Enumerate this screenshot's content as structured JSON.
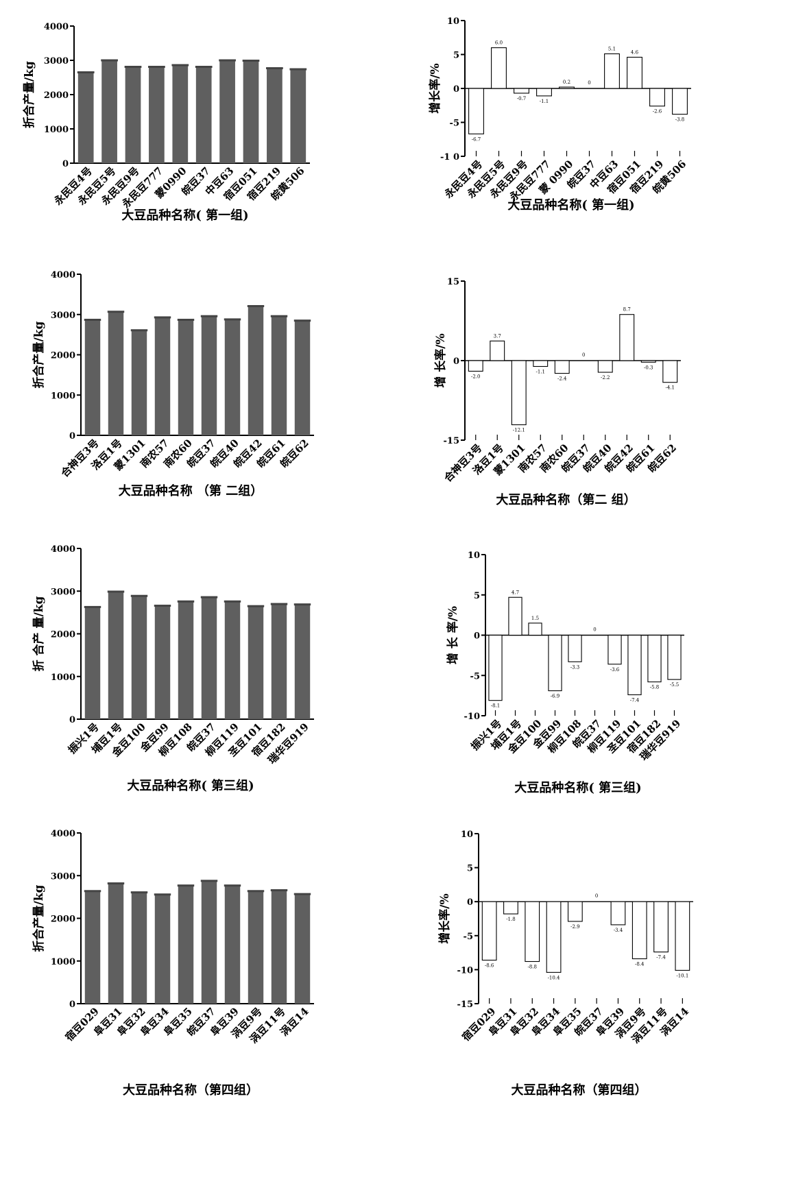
{
  "chart_data": [
    {
      "type": "bar",
      "group": "yield-group-1",
      "categories": [
        "永民豆4号",
        "永民豆5号",
        "永民豆9号",
        "永民豆777",
        "蒙0990",
        "皖豆37",
        "中豆63",
        "宿豆051",
        "宿豆219",
        "皖黄506"
      ],
      "values": [
        2640,
        2990,
        2800,
        2800,
        2850,
        2800,
        2990,
        2980,
        2760,
        2730
      ],
      "xlabel": "大豆品种名称( 第一组)",
      "ylabel": "折合产量/kg",
      "ylim": [
        0,
        4000
      ],
      "ticks": [
        0,
        1000,
        2000,
        3000,
        4000
      ],
      "tick_labels": [
        "0",
        "1000",
        "2000",
        "3000",
        "4000"
      ],
      "color": "#5f5f5f"
    },
    {
      "type": "bar",
      "group": "growth-group-1",
      "categories": [
        "永民豆4号",
        "永民豆5号",
        "永民豆9号",
        "永民豆777",
        "蒙 0990",
        "皖豆37",
        "中豆63",
        "宿豆051",
        "宿豆219",
        "皖黄506"
      ],
      "values": [
        -6.7,
        6.0,
        -0.7,
        -1.1,
        0.2,
        0,
        5.1,
        4.6,
        -2.6,
        -3.8
      ],
      "data_labels": [
        "-6.7",
        "6.0",
        "-0.7",
        "-1.1",
        "0.2",
        "0",
        "5.1",
        "4.6",
        "-2.6",
        "-3.8"
      ],
      "xlabel": "大豆品种名称( 第一组)",
      "ylabel": "增长率/%",
      "ylim": [
        -10,
        10
      ],
      "ticks": [
        -10,
        -5,
        0,
        5,
        10
      ],
      "tick_labels": [
        "-1 0",
        "-5",
        "0",
        "5",
        "10"
      ],
      "color": "#ffffff"
    },
    {
      "type": "bar",
      "group": "yield-group-2",
      "categories": [
        "合神豆3号",
        "洛豆1号",
        "蒙1301",
        "南农57",
        "南农60",
        "皖豆37",
        "皖豆40",
        "皖豆42",
        "皖豆61",
        "皖豆62"
      ],
      "values": [
        2860,
        3060,
        2600,
        2920,
        2860,
        2950,
        2870,
        3200,
        2950,
        2840
      ],
      "xlabel": "大豆品种名称 （第 二组）",
      "ylabel": "折合产量/kg",
      "ylim": [
        0,
        4000
      ],
      "ticks": [
        0,
        1000,
        2000,
        3000,
        4000
      ],
      "tick_labels": [
        "0",
        "1000",
        "2000",
        "3000",
        "4000"
      ],
      "color": "#5f5f5f"
    },
    {
      "type": "bar",
      "group": "growth-group-2",
      "categories": [
        "合神豆3号",
        "洛豆1号",
        "蒙1301",
        "南农57",
        "南农60",
        "皖豆37",
        "皖豆40",
        "皖豆42",
        "皖豆61",
        "皖豆62"
      ],
      "values": [
        -2.0,
        3.7,
        -12.1,
        -1.1,
        -2.4,
        0,
        -2.2,
        8.7,
        -0.3,
        -4.1
      ],
      "data_labels": [
        "-2.0",
        "3.7",
        "-12.1",
        "-1.1",
        "-2.4",
        "0",
        "-2.2",
        "8.7",
        "-0.3",
        "-4.1"
      ],
      "xlabel": "大豆品种名称（第二 组）",
      "ylabel": "增 长率/%",
      "ylim": [
        -15,
        15
      ],
      "ticks": [
        -15,
        0,
        15
      ],
      "tick_labels": [
        "-15",
        "0",
        "15"
      ],
      "color": "#ffffff"
    },
    {
      "type": "bar",
      "group": "yield-group-3",
      "categories": [
        "振兴1号",
        "埔豆1号",
        "金豆100",
        "金豆99",
        "柳豆108",
        "皖豆37",
        "柳豆119",
        "圣豆101",
        "宿豆182",
        "瑞华豆919"
      ],
      "values": [
        2620,
        2980,
        2880,
        2650,
        2750,
        2850,
        2750,
        2640,
        2690,
        2680
      ],
      "xlabel": "大豆品种名称( 第三组)",
      "ylabel": "折 合产 量/kg",
      "ylim": [
        0,
        4000
      ],
      "ticks": [
        0,
        1000,
        2000,
        3000,
        4000
      ],
      "tick_labels": [
        "0",
        "1000",
        "2000",
        "3000",
        "4000"
      ],
      "color": "#5f5f5f"
    },
    {
      "type": "bar",
      "group": "growth-group-3",
      "categories": [
        "振兴1号",
        "埔豆1号",
        "金豆100",
        "金豆99",
        "柳豆108",
        "皖豆37",
        "柳豆119",
        "圣豆101",
        "宿豆182",
        "瑞华豆919"
      ],
      "values": [
        -8.1,
        4.7,
        1.5,
        -6.9,
        -3.3,
        0,
        -3.6,
        -7.4,
        -5.8,
        -5.5
      ],
      "data_labels": [
        "-8.1",
        "4.7",
        "1.5",
        "-6.9",
        "-3.3",
        "0",
        "-3.6",
        "-7.4",
        "-5.8",
        "-5.5"
      ],
      "xlabel": "大豆品种名称( 第三组)",
      "ylabel": "增 长 率/%",
      "ylim": [
        -10,
        10
      ],
      "ticks": [
        -10,
        -5,
        0,
        5,
        10
      ],
      "tick_labels": [
        "-10",
        "-5",
        "0",
        "5",
        "10"
      ],
      "color": "#ffffff"
    },
    {
      "type": "bar",
      "group": "yield-group-4",
      "categories": [
        "宿豆029",
        "阜豆31",
        "阜豆32",
        "阜豆34",
        "阜豆35",
        "皖豆37",
        "阜豆39",
        "涡豆9号",
        "涡豆11号",
        "涡豆14"
      ],
      "values": [
        2630,
        2810,
        2600,
        2550,
        2760,
        2870,
        2760,
        2630,
        2650,
        2560
      ],
      "xlabel": "大豆品种名称（第四组）",
      "ylabel": "折合产量/kg",
      "ylim": [
        0,
        4000
      ],
      "ticks": [
        0,
        1000,
        2000,
        3000,
        4000
      ],
      "tick_labels": [
        "0",
        "1000",
        "2000",
        "3000",
        "4000"
      ],
      "color": "#5f5f5f"
    },
    {
      "type": "bar",
      "group": "growth-group-4",
      "categories": [
        "宿豆029",
        "阜豆31",
        "阜豆32",
        "阜豆34",
        "阜豆35",
        "皖豆37",
        "阜豆39",
        "涡豆9号",
        "涡豆11号",
        "涡豆14"
      ],
      "values": [
        -8.6,
        -1.8,
        -8.8,
        -10.4,
        -2.9,
        0,
        -3.4,
        -8.4,
        -7.4,
        -10.1
      ],
      "data_labels": [
        "-8.6",
        "-1.8",
        "-8.8",
        "-10.4",
        "-2.9",
        "0",
        "-3.4",
        "-8.4",
        "-7.4",
        "-10.1"
      ],
      "xlabel": "大豆品种名称（第四组）",
      "ylabel": "增长率/%",
      "ylim": [
        -15,
        10
      ],
      "ticks": [
        -15,
        -10,
        -5,
        0,
        5,
        10
      ],
      "tick_labels": [
        "-15",
        "-10",
        "-5",
        "0",
        "5",
        "10"
      ],
      "color": "#ffffff"
    }
  ]
}
